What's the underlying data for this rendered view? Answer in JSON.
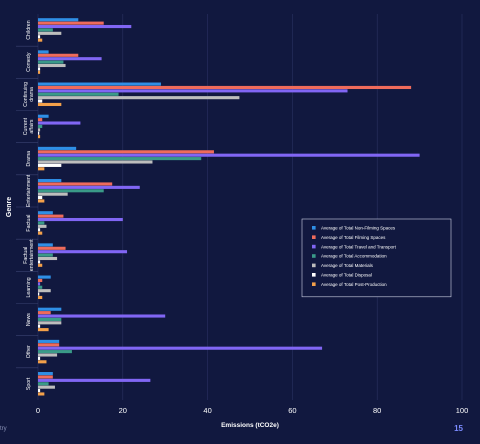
{
  "footer_text": "try",
  "page_number": "15",
  "colors": {
    "background": "#11183f",
    "legend_border": "#cfd3e6"
  },
  "chart_data": {
    "type": "bar",
    "orientation": "horizontal",
    "xlabel": "Emissions (tCO2e)",
    "ylabel": "Genre",
    "xlim": [
      0,
      100
    ],
    "xticks": [
      0,
      20,
      40,
      60,
      80,
      100
    ],
    "grid": true,
    "legend_position": "right",
    "categories": [
      {
        "label": [
          "Children"
        ]
      },
      {
        "label": [
          "Comedy"
        ]
      },
      {
        "label": [
          "Continuing",
          "drama"
        ]
      },
      {
        "label": [
          "Current",
          "affairs"
        ]
      },
      {
        "label": [
          "Drama"
        ]
      },
      {
        "label": [
          "Entertainment"
        ]
      },
      {
        "label": [
          "Factual"
        ]
      },
      {
        "label": [
          "Factual",
          "entertainment"
        ]
      },
      {
        "label": [
          "Learning"
        ]
      },
      {
        "label": [
          "News"
        ]
      },
      {
        "label": [
          "Other"
        ]
      },
      {
        "label": [
          "Sport"
        ]
      }
    ],
    "series": [
      {
        "name": "Average of Total Non-Filming Spaces",
        "color": "#2f8fe6",
        "values": [
          9.5,
          2.5,
          29,
          2.5,
          9,
          5.5,
          3.5,
          3.5,
          3,
          5.5,
          5,
          3.5
        ]
      },
      {
        "name": "Average of Total Filming Spaces",
        "color": "#ef6b5b",
        "values": [
          15.5,
          9.5,
          88,
          1,
          41.5,
          17.5,
          6,
          6.5,
          1,
          3,
          5,
          3.5
        ]
      },
      {
        "name": "Average of Total Travel and Transport",
        "color": "#8166f4",
        "values": [
          22,
          15,
          73,
          10,
          90,
          24,
          20,
          21,
          0.5,
          30,
          67,
          26.5
        ]
      },
      {
        "name": "Average of Total Accommodation",
        "color": "#3a9a88",
        "values": [
          3.5,
          6,
          19,
          1,
          38.5,
          15.5,
          1.5,
          3.5,
          1,
          5.5,
          8,
          2.5
        ]
      },
      {
        "name": "Average of Total Materials",
        "color": "#bdbdbd",
        "values": [
          5.5,
          6.5,
          47.5,
          0.5,
          27,
          7,
          2,
          4.5,
          3,
          5.5,
          4.5,
          4
        ]
      },
      {
        "name": "Average of Total Disposal",
        "color": "#ffffff",
        "values": [
          0.5,
          0.5,
          1,
          0.3,
          5.5,
          1,
          0.5,
          0.5,
          0.3,
          0.5,
          0.5,
          0.5
        ]
      },
      {
        "name": "Average of Total Post-Production",
        "color": "#f3a04a",
        "values": [
          1,
          0.5,
          5.5,
          0.5,
          1.5,
          1.5,
          1,
          1,
          1,
          2.5,
          2,
          1.5
        ]
      }
    ]
  }
}
